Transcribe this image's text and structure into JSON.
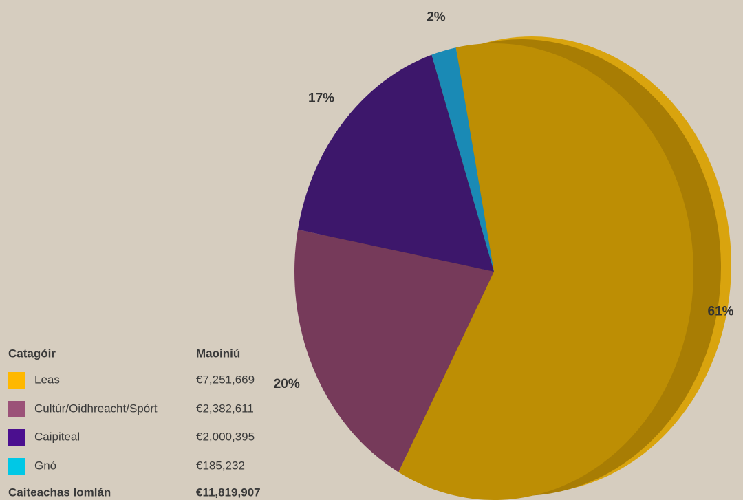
{
  "chart_data": {
    "type": "pie",
    "categories": [
      "Leas",
      "Cultúr/Oidhreacht/Spórt",
      "Caipiteal",
      "Gnó"
    ],
    "values": [
      61,
      20,
      17,
      2
    ],
    "value_labels": [
      "61%",
      "20%",
      "17%",
      "2%"
    ],
    "colors": [
      "#bd8e04",
      "#763a5a",
      "#3d176b",
      "#1a8ab5"
    ],
    "legend_colors": [
      "#ffb800",
      "#9b5278",
      "#4b0f8f",
      "#00c8e6"
    ]
  },
  "table": {
    "headers": [
      "Catagóir",
      "Maoiniú"
    ],
    "amounts": [
      "€7,251,669",
      "€2,382,611",
      "€2,000,395",
      "€185,232"
    ],
    "total_label": "Caiteachas Iomlán",
    "total": "€11,819,907"
  }
}
